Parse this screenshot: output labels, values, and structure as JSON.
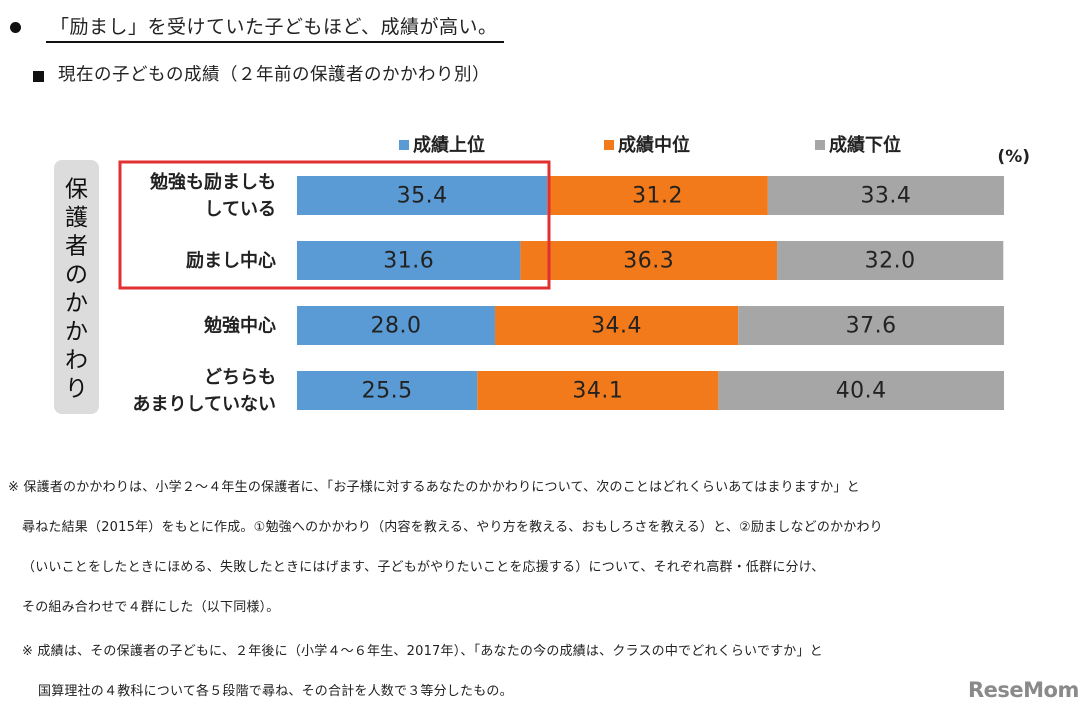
{
  "headline": "「励まし」を受けていた子どもほど、成績が高い。",
  "subtitle": "現在の子どもの成績（２年前の保護者のかかわり別）",
  "chart_data": {
    "type": "bar",
    "orientation": "horizontal",
    "stacked": true,
    "percent_unit_label": "(%)",
    "y_group_label": "保護者のかかわり",
    "categories": [
      [
        "勉強も励ましも",
        "している"
      ],
      [
        "励まし中心"
      ],
      [
        "勉強中心"
      ],
      [
        "どちらも",
        "あまりしていない"
      ]
    ],
    "series": [
      {
        "name": "成績上位",
        "values": [
          35.4,
          31.6,
          28.0,
          25.5
        ],
        "labels": [
          "35.4",
          "31.6",
          "28.0",
          "25.5"
        ]
      },
      {
        "name": "成績中位",
        "values": [
          31.2,
          36.3,
          34.4,
          34.1
        ],
        "labels": [
          "31.2",
          "36.3",
          "34.4",
          "34.1"
        ]
      },
      {
        "name": "成績下位",
        "values": [
          33.4,
          32.0,
          37.6,
          40.4
        ],
        "labels": [
          "33.4",
          "32.0",
          "37.6",
          "40.4"
        ]
      }
    ],
    "xlim": [
      0,
      100
    ],
    "grid": false,
    "legend": "top",
    "highlighted_categories": [
      0,
      1
    ]
  },
  "colors": {
    "top": "#5b9bd5",
    "middle": "#f27a1a",
    "bottom": "#a6a6a6",
    "highlight": "#e03030",
    "group_box": "#dcdcdc"
  },
  "footnotes": [
    "※ 保護者のかかわりは、小学２～４年生の保護者に、「お子様に対するあなたのかかわりについて、次のことはどれくらいあてはまりますか」と",
    "尋ねた結果（2015年）をもとに作成。①勉強へのかかわり（内容を教える、やり方を教える、おもしろさを教える）と、②励ましなどのかかわり",
    "（いいことをしたときにほめる、失敗したときにはげます、子どもがやりたいことを応援する）について、それぞれ高群・低群に分け、",
    "その組み合わせで４群にした（以下同様）。",
    "※ 成績は、その保護者の子どもに、２年後に（小学４～６年生、2017年）、「あなたの今の成績は、クラスの中でどれくらいですか」と",
    "国算理社の４教科について各５段階で尋ね、その合計を人数で３等分したもの。"
  ],
  "logo": "ReseMom"
}
